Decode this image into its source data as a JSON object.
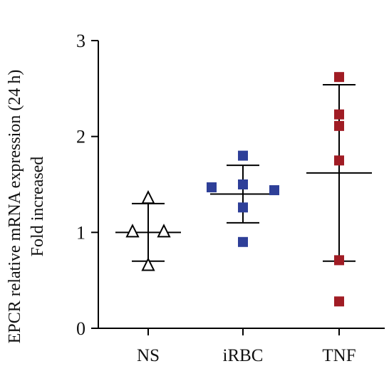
{
  "chart_data": {
    "type": "scatter",
    "ylabel_line1": "EPCR relative mRNA expression (24 h)",
    "ylabel_line2": "Fold increased",
    "ylim": [
      0,
      3
    ],
    "yticks": [
      "0",
      "1",
      "2",
      "3"
    ],
    "categories": [
      "NS",
      "iRBC",
      "TNF"
    ],
    "grid": false,
    "series": [
      {
        "category": "NS",
        "marker": "open-triangle",
        "color": "#000000",
        "points": [
          {
            "offset": 0,
            "y": 1.35
          },
          {
            "offset": -1,
            "y": 1.0
          },
          {
            "offset": 1,
            "y": 1.0
          },
          {
            "offset": 0,
            "y": 0.65
          }
        ],
        "mean": 1.0,
        "upper": 1.3,
        "lower": 0.7
      },
      {
        "category": "iRBC",
        "marker": "filled-square",
        "color": "#2e3f98",
        "points": [
          {
            "offset": 0,
            "y": 1.8
          },
          {
            "offset": -2,
            "y": 1.47
          },
          {
            "offset": 0,
            "y": 1.5
          },
          {
            "offset": 2,
            "y": 1.44
          },
          {
            "offset": 0,
            "y": 1.26
          },
          {
            "offset": 0,
            "y": 0.9
          }
        ],
        "mean": 1.4,
        "upper": 1.7,
        "lower": 1.1
      },
      {
        "category": "TNF",
        "marker": "filled-square",
        "color": "#a01c24",
        "points": [
          {
            "offset": 0,
            "y": 2.62
          },
          {
            "offset": 0,
            "y": 2.23
          },
          {
            "offset": 0,
            "y": 2.11
          },
          {
            "offset": 0,
            "y": 1.75
          },
          {
            "offset": 0,
            "y": 0.71
          },
          {
            "offset": 0,
            "y": 0.28
          }
        ],
        "mean": 1.62,
        "upper": 2.54,
        "lower": 0.7
      }
    ]
  }
}
